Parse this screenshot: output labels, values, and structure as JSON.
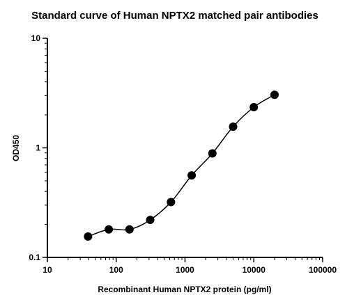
{
  "chart_data": {
    "type": "scatter",
    "title": "Standard curve of Human NPTX2 matched pair antibodies",
    "xlabel": "Recombinant Human NPTX2 protein (pg/ml)",
    "ylabel": "OD450",
    "x_scale": "log",
    "y_scale": "log",
    "xlim": [
      10,
      100000
    ],
    "ylim": [
      0.1,
      10
    ],
    "x_ticks": [
      "10",
      "100",
      "1000",
      "10000",
      "100000"
    ],
    "y_ticks": [
      "0.1",
      "1",
      "10"
    ],
    "grid": false,
    "legend": "none",
    "series": [
      {
        "x": [
          39,
          78,
          156,
          312,
          625,
          1250,
          2500,
          5000,
          10000,
          20000
        ],
        "y": [
          0.155,
          0.18,
          0.18,
          0.22,
          0.32,
          0.56,
          0.89,
          1.56,
          2.35,
          3.05
        ],
        "marker": "circle",
        "color": "#000000",
        "fit": "4PL curve"
      }
    ]
  }
}
